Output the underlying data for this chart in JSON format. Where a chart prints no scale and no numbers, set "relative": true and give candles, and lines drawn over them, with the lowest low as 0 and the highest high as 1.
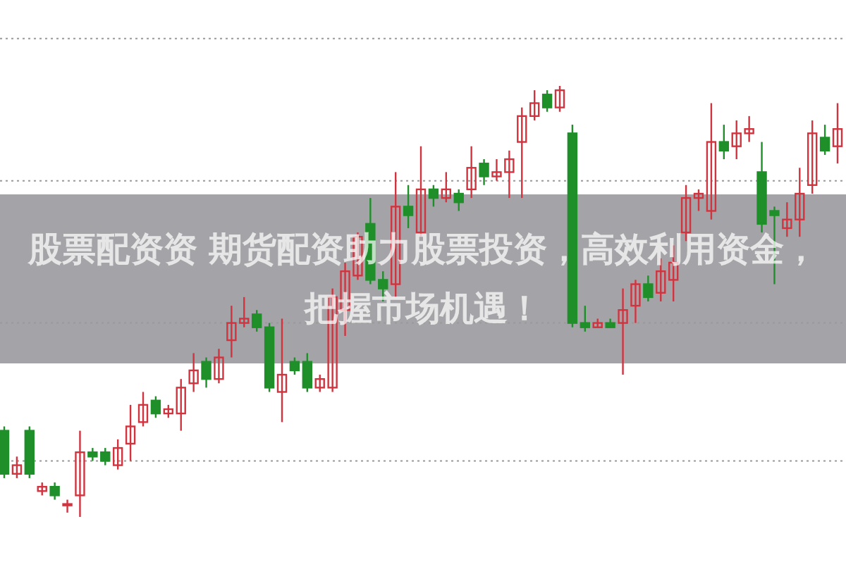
{
  "chart_data": {
    "type": "candlestick",
    "relative": true,
    "title": "股票配资资 期货配资助力股票投资，高效利用资金，把握市场机遇！",
    "categories": [
      null,
      null,
      null,
      null,
      null,
      null,
      null,
      null,
      null,
      null,
      null,
      null,
      null,
      null,
      null,
      null,
      null,
      null,
      null,
      null,
      null,
      null,
      null,
      null,
      null,
      null,
      null,
      null,
      null,
      null,
      null,
      null,
      null,
      null,
      null,
      null,
      null,
      null,
      null,
      null,
      null,
      null,
      null,
      null,
      null,
      null,
      null,
      null,
      null,
      null,
      null,
      null,
      null,
      null,
      null,
      null,
      null,
      null,
      null,
      null,
      null,
      null,
      null,
      null,
      null,
      null,
      null
    ],
    "ohlc": [
      [
        0.2,
        0.21,
        0.09,
        0.1
      ],
      [
        0.1,
        0.14,
        0.09,
        0.12
      ],
      [
        0.2,
        0.21,
        0.09,
        0.1
      ],
      [
        0.06,
        0.08,
        0.05,
        0.07
      ],
      [
        0.07,
        0.08,
        0.04,
        0.05
      ],
      [
        0.03,
        0.04,
        0.01,
        0.03
      ],
      [
        0.05,
        0.2,
        0.0,
        0.15
      ],
      [
        0.15,
        0.16,
        0.13,
        0.14
      ],
      [
        0.15,
        0.16,
        0.12,
        0.13
      ],
      [
        0.12,
        0.18,
        0.11,
        0.16
      ],
      [
        0.17,
        0.26,
        0.13,
        0.21
      ],
      [
        0.22,
        0.29,
        0.21,
        0.26
      ],
      [
        0.27,
        0.28,
        0.23,
        0.24
      ],
      [
        0.24,
        0.26,
        0.23,
        0.25
      ],
      [
        0.24,
        0.32,
        0.2,
        0.3
      ],
      [
        0.31,
        0.38,
        0.29,
        0.34
      ],
      [
        0.36,
        0.37,
        0.3,
        0.32
      ],
      [
        0.32,
        0.39,
        0.31,
        0.37
      ],
      [
        0.41,
        0.49,
        0.37,
        0.45
      ],
      [
        0.45,
        0.51,
        0.44,
        0.46
      ],
      [
        0.47,
        0.48,
        0.43,
        0.44
      ],
      [
        0.44,
        0.45,
        0.29,
        0.3
      ],
      [
        0.29,
        0.46,
        0.22,
        0.33
      ],
      [
        0.36,
        0.37,
        0.33,
        0.34
      ],
      [
        0.36,
        0.38,
        0.29,
        0.3
      ],
      [
        0.3,
        0.33,
        0.29,
        0.32
      ],
      [
        0.3,
        0.53,
        0.29,
        0.51
      ],
      [
        0.48,
        0.59,
        0.42,
        0.57
      ],
      [
        0.56,
        0.66,
        0.55,
        0.65
      ],
      [
        0.68,
        0.74,
        0.54,
        0.55
      ],
      [
        0.55,
        0.57,
        0.5,
        0.53
      ],
      [
        0.54,
        0.8,
        0.51,
        0.72
      ],
      [
        0.72,
        0.77,
        0.67,
        0.7
      ],
      [
        0.66,
        0.86,
        0.65,
        0.76
      ],
      [
        0.76,
        0.77,
        0.72,
        0.74
      ],
      [
        0.74,
        0.8,
        0.73,
        0.76
      ],
      [
        0.75,
        0.76,
        0.71,
        0.73
      ],
      [
        0.76,
        0.86,
        0.74,
        0.81
      ],
      [
        0.82,
        0.83,
        0.77,
        0.79
      ],
      [
        0.79,
        0.83,
        0.78,
        0.8
      ],
      [
        0.8,
        0.85,
        0.74,
        0.83
      ],
      [
        0.87,
        0.95,
        0.74,
        0.93
      ],
      [
        0.93,
        0.99,
        0.92,
        0.96
      ],
      [
        0.98,
        0.99,
        0.94,
        0.95
      ],
      [
        0.95,
        1.0,
        0.94,
        0.99
      ],
      [
        0.89,
        0.91,
        0.44,
        0.45
      ],
      [
        0.45,
        0.49,
        0.43,
        0.44
      ],
      [
        0.44,
        0.46,
        0.44,
        0.45
      ],
      [
        0.45,
        0.46,
        0.44,
        0.44
      ],
      [
        0.45,
        0.53,
        0.33,
        0.48
      ],
      [
        0.49,
        0.55,
        0.45,
        0.54
      ],
      [
        0.54,
        0.56,
        0.5,
        0.51
      ],
      [
        0.52,
        0.6,
        0.5,
        0.57
      ],
      [
        0.55,
        0.63,
        0.5,
        0.59
      ],
      [
        0.66,
        0.77,
        0.64,
        0.74
      ],
      [
        0.74,
        0.76,
        0.71,
        0.75
      ],
      [
        0.71,
        0.96,
        0.69,
        0.87
      ],
      [
        0.87,
        0.91,
        0.83,
        0.85
      ],
      [
        0.86,
        0.92,
        0.83,
        0.89
      ],
      [
        0.89,
        0.93,
        0.87,
        0.9
      ],
      [
        0.8,
        0.87,
        0.66,
        0.68
      ],
      [
        0.71,
        0.72,
        0.54,
        0.7
      ],
      [
        0.67,
        0.73,
        0.65,
        0.69
      ],
      [
        0.69,
        0.81,
        0.65,
        0.75
      ],
      [
        0.77,
        0.92,
        0.75,
        0.89
      ],
      [
        0.88,
        0.91,
        0.84,
        0.85
      ],
      [
        0.86,
        0.96,
        0.82,
        0.9
      ]
    ],
    "ref_lines": [
      {
        "axis": "y",
        "value": 1.11,
        "color": "#999999",
        "line_style": "dotted"
      },
      {
        "axis": "y",
        "value": 0.78,
        "color": "#999999",
        "line_style": "dotted"
      },
      {
        "axis": "y",
        "value": 0.45,
        "color": "#999999",
        "line_style": "dotted"
      },
      {
        "axis": "y",
        "value": 0.13,
        "color": "#999999",
        "line_style": "dotted"
      }
    ]
  }
}
